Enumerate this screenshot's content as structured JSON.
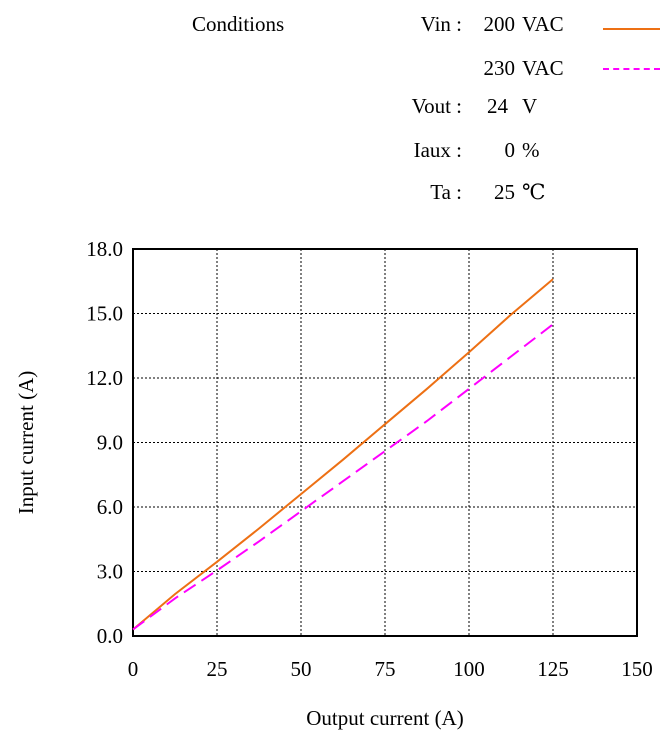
{
  "conditions": {
    "heading": "Conditions",
    "vin_label": "Vin :",
    "vin_values": [
      {
        "value": "200",
        "unit": "VAC"
      },
      {
        "value": "230",
        "unit": "VAC"
      }
    ],
    "vout_label": "Vout :",
    "vout_value": "24",
    "vout_unit": "V",
    "iaux_label": "Iaux :",
    "iaux_value": "0",
    "iaux_unit": "%",
    "ta_label": "Ta :",
    "ta_value": "25",
    "ta_unit": "℃"
  },
  "chart_data": {
    "type": "line",
    "title": "",
    "xlabel": "Output current (A)",
    "ylabel": "Input current (A)",
    "xlim": [
      0,
      150
    ],
    "ylim": [
      0,
      18
    ],
    "xticks": [
      "0",
      "25",
      "50",
      "75",
      "100",
      "125",
      "150"
    ],
    "yticks": [
      "0.0",
      "3.0",
      "6.0",
      "9.0",
      "12.0",
      "15.0",
      "18.0"
    ],
    "grid": true,
    "series": [
      {
        "color": "#ed7014",
        "dash": "solid",
        "x": [
          0,
          12.5,
          25,
          37.5,
          50,
          62.5,
          75,
          87.5,
          100,
          112.5,
          125
        ],
        "y": [
          0.3,
          1.95,
          3.45,
          5.0,
          6.6,
          8.2,
          9.85,
          11.5,
          13.2,
          14.95,
          16.6
        ]
      },
      {
        "color": "#ff00ff",
        "dash": "dashed",
        "x": [
          0,
          12.5,
          25,
          37.5,
          50,
          62.5,
          75,
          87.5,
          100,
          112.5,
          125
        ],
        "y": [
          0.3,
          1.75,
          3.05,
          4.4,
          5.8,
          7.2,
          8.6,
          10.0,
          11.5,
          13.0,
          14.5
        ]
      }
    ]
  }
}
